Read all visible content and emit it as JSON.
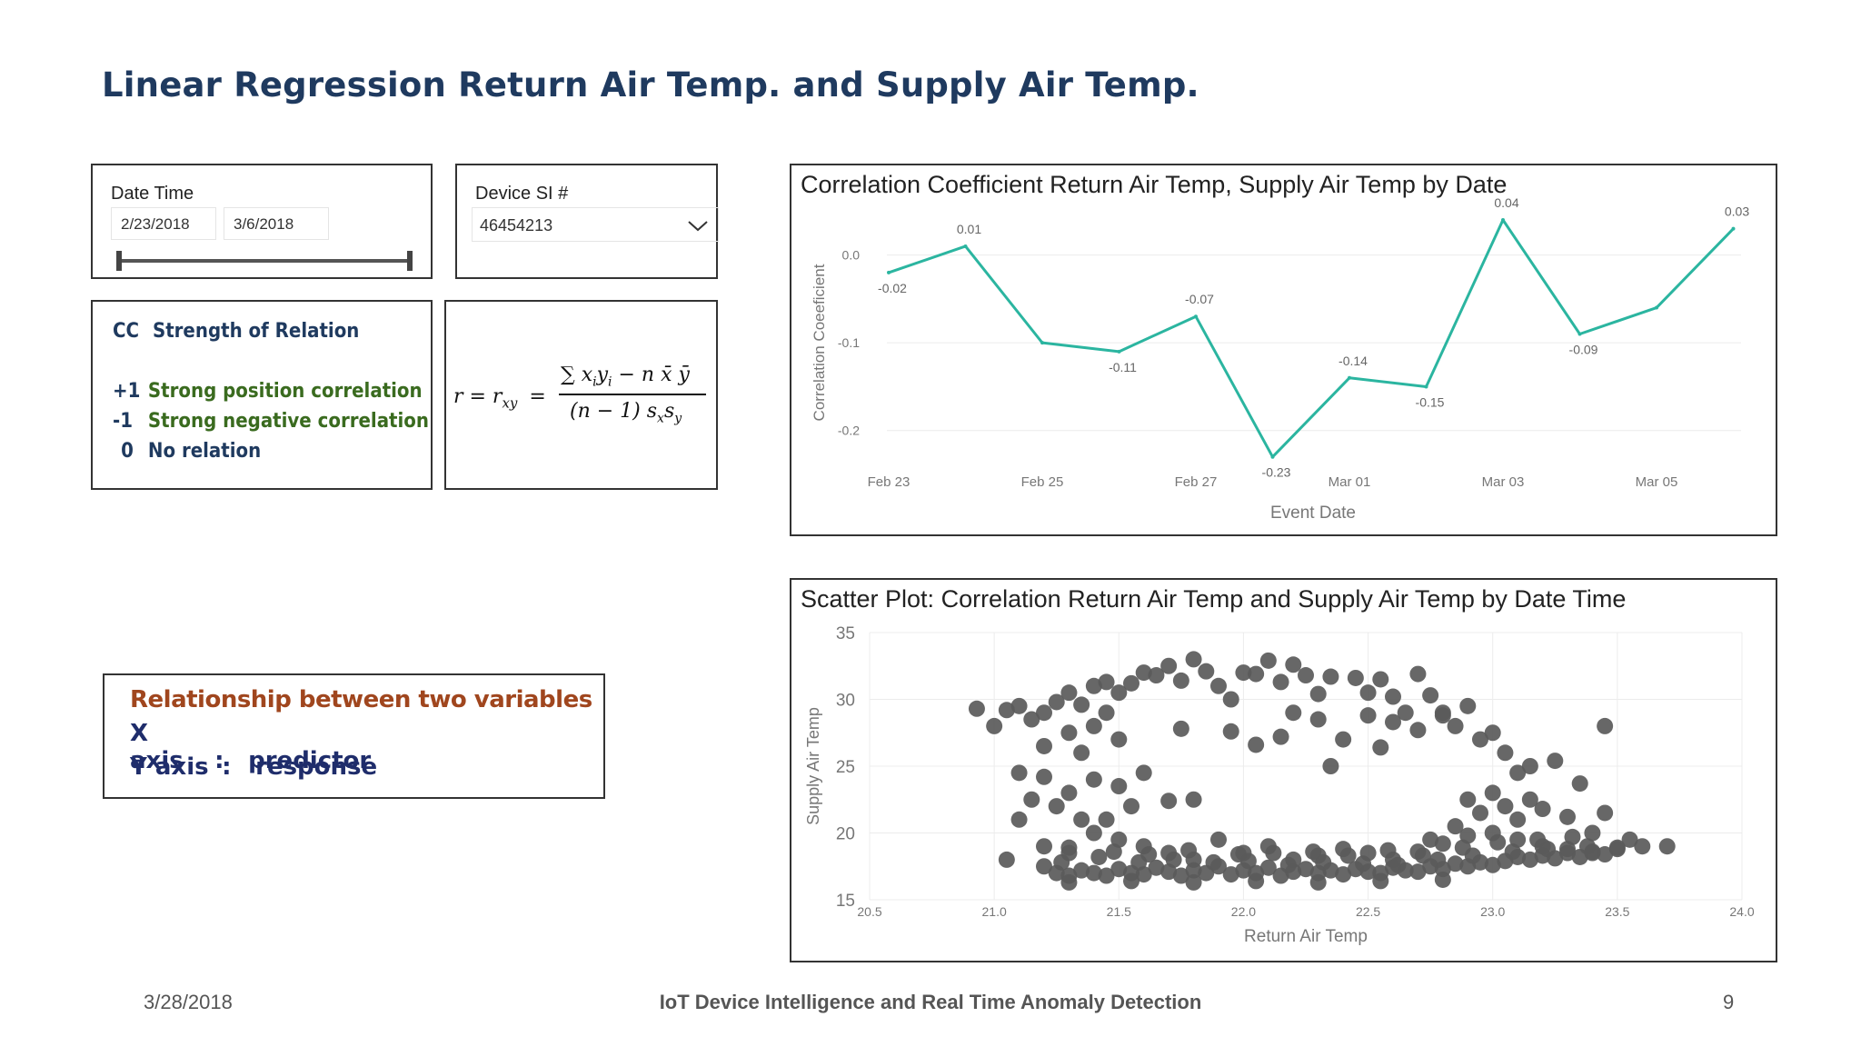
{
  "slide": {
    "title": "Linear Regression Return Air Temp. and Supply Air Temp.",
    "footer_date": "3/28/2018",
    "footer_center": "IoT Device Intelligence and Real Time Anomaly Detection",
    "page_number": "9"
  },
  "date_slicer": {
    "title": "Date Time",
    "start": "2/23/2018",
    "end": "3/6/2018"
  },
  "device_slicer": {
    "title": "Device SI #",
    "selected": "46454213"
  },
  "cc_legend": {
    "header_cc": "CC",
    "header_label": "Strength of Relation",
    "rows": [
      {
        "value": "+1",
        "label": "Strong position correlation",
        "color": "#3a6b1f"
      },
      {
        "value": "-1",
        "label": "Strong negative correlation",
        "color": "#3a6b1f"
      },
      {
        "value": "0",
        "label": "No relation",
        "color": "#1f3a5f"
      }
    ],
    "header_color": "#1f3a5f"
  },
  "relationship": {
    "heading": "Relationship between two variables",
    "heading_color": "#a0461e",
    "x_label": "X axis",
    "x_sep": ":",
    "x_value": "predictor",
    "y_label": "Y axis",
    "y_sep": ":",
    "y_value": "response",
    "text_color": "#1f2d6b"
  },
  "formula": {
    "lhs": "r = r",
    "lhs_sub": "xy",
    "equals": "=",
    "numerator": "∑ x",
    "numerator_rest": "y",
    "numerator_tail": " − n x̄ ȳ",
    "denominator": "(n − 1) s",
    "denominator_tail": "s"
  },
  "colors": {
    "line": "#2bb5a0",
    "scatter": "#5a5a5a",
    "grid": "#ececec",
    "axis_text": "#777777"
  },
  "chart_data": [
    {
      "type": "line",
      "title": "Correlation Coefficient Return Air Temp, Supply Air Temp by Date",
      "xlabel": "Event Date",
      "ylabel": "Correlation Coeeficient",
      "x_ticks": [
        "Feb 23",
        "Feb 25",
        "Feb 27",
        "Mar 01",
        "Mar 03",
        "Mar 05"
      ],
      "y_ticks": [
        "0.0",
        "-0.1",
        "-0.2"
      ],
      "y_tick_values": [
        0.0,
        -0.1,
        -0.2
      ],
      "ylim": [
        -0.25,
        0.04
      ],
      "x": [
        "Feb 23",
        "Feb 24",
        "Feb 25",
        "Feb 26",
        "Feb 27",
        "Feb 28",
        "Mar 01",
        "Mar 02",
        "Mar 03",
        "Mar 04",
        "Mar 05",
        "Mar 06"
      ],
      "values": [
        -0.02,
        0.01,
        -0.1,
        -0.11,
        -0.07,
        -0.23,
        -0.14,
        -0.15,
        0.04,
        -0.09,
        -0.06,
        0.03
      ],
      "data_labels": [
        "-0.02",
        "0.01",
        "",
        "-0.11",
        "-0.07",
        "-0.23",
        "-0.14",
        "-0.15",
        "0.04",
        "-0.09",
        "",
        "0.03"
      ]
    },
    {
      "type": "scatter",
      "title": "Scatter Plot: Correlation Return Air Temp and Supply Air Temp by Date Time",
      "xlabel": "Return Air Temp",
      "ylabel": "Supply Air Temp",
      "xlim": [
        20.5,
        24.0
      ],
      "ylim": [
        15,
        35
      ],
      "x_ticks": [
        "20.5",
        "21.0",
        "21.5",
        "22.0",
        "22.5",
        "23.0",
        "23.5",
        "24.0"
      ],
      "x_tick_values": [
        20.5,
        21.0,
        21.5,
        22.0,
        22.5,
        23.0,
        23.5,
        24.0
      ],
      "y_ticks": [
        "35",
        "30",
        "25",
        "20",
        "15"
      ],
      "y_tick_values": [
        35,
        30,
        25,
        20,
        15
      ],
      "points": [
        [
          20.93,
          29.3
        ],
        [
          21.0,
          28.0
        ],
        [
          21.05,
          29.2
        ],
        [
          21.1,
          29.5
        ],
        [
          21.15,
          28.5
        ],
        [
          21.2,
          29.0
        ],
        [
          21.25,
          29.8
        ],
        [
          21.3,
          30.5
        ],
        [
          21.35,
          29.6
        ],
        [
          21.4,
          31.0
        ],
        [
          21.45,
          31.3
        ],
        [
          21.5,
          30.5
        ],
        [
          21.55,
          31.2
        ],
        [
          21.6,
          32.0
        ],
        [
          21.65,
          31.8
        ],
        [
          21.7,
          32.5
        ],
        [
          21.75,
          31.4
        ],
        [
          21.8,
          33.0
        ],
        [
          21.85,
          32.1
        ],
        [
          21.9,
          31.0
        ],
        [
          21.95,
          30.0
        ],
        [
          22.0,
          32.0
        ],
        [
          22.05,
          31.9
        ],
        [
          22.1,
          32.9
        ],
        [
          22.15,
          31.3
        ],
        [
          22.2,
          32.6
        ],
        [
          22.25,
          31.8
        ],
        [
          22.3,
          30.4
        ],
        [
          22.35,
          31.7
        ],
        [
          22.45,
          31.6
        ],
        [
          22.5,
          30.5
        ],
        [
          22.55,
          31.5
        ],
        [
          22.6,
          30.2
        ],
        [
          22.65,
          29.0
        ],
        [
          22.7,
          31.9
        ],
        [
          22.75,
          30.3
        ],
        [
          22.8,
          29.0
        ],
        [
          22.85,
          28.0
        ],
        [
          22.9,
          29.5
        ],
        [
          22.95,
          27.0
        ],
        [
          23.0,
          27.5
        ],
        [
          23.05,
          26.0
        ],
        [
          23.1,
          24.5
        ],
        [
          23.15,
          25.0
        ],
        [
          23.25,
          25.4
        ],
        [
          23.35,
          23.7
        ],
        [
          23.45,
          28.0
        ],
        [
          21.4,
          28.0
        ],
        [
          21.3,
          27.5
        ],
        [
          21.2,
          26.5
        ],
        [
          21.35,
          26.0
        ],
        [
          21.5,
          27.0
        ],
        [
          21.45,
          29.0
        ],
        [
          22.2,
          29.0
        ],
        [
          22.3,
          28.5
        ],
        [
          22.4,
          27.0
        ],
        [
          22.5,
          28.8
        ],
        [
          22.6,
          28.3
        ],
        [
          22.7,
          27.7
        ],
        [
          22.8,
          28.8
        ],
        [
          21.95,
          27.6
        ],
        [
          22.35,
          25.0
        ],
        [
          21.75,
          27.8
        ],
        [
          22.55,
          26.4
        ],
        [
          22.05,
          26.6
        ],
        [
          22.15,
          27.2
        ],
        [
          21.1,
          24.5
        ],
        [
          21.2,
          24.2
        ],
        [
          21.3,
          23.0
        ],
        [
          21.4,
          24.0
        ],
        [
          21.5,
          23.5
        ],
        [
          21.55,
          22.0
        ],
        [
          21.6,
          24.5
        ],
        [
          21.15,
          22.5
        ],
        [
          21.25,
          22.0
        ],
        [
          21.35,
          21.0
        ],
        [
          21.1,
          21.0
        ],
        [
          21.45,
          21.0
        ],
        [
          21.7,
          22.4
        ],
        [
          21.8,
          22.5
        ],
        [
          22.9,
          22.5
        ],
        [
          23.0,
          23.0
        ],
        [
          23.05,
          22.0
        ],
        [
          22.95,
          21.5
        ],
        [
          23.1,
          21.0
        ],
        [
          23.15,
          22.5
        ],
        [
          23.2,
          21.8
        ],
        [
          23.3,
          21.2
        ],
        [
          23.4,
          20.0
        ],
        [
          23.45,
          21.5
        ],
        [
          23.55,
          19.5
        ],
        [
          23.6,
          19.0
        ],
        [
          23.7,
          19.0
        ],
        [
          22.85,
          20.5
        ],
        [
          22.75,
          19.5
        ],
        [
          21.05,
          18.0
        ],
        [
          21.2,
          19.0
        ],
        [
          21.3,
          18.5
        ],
        [
          21.4,
          20.0
        ],
        [
          21.5,
          19.5
        ],
        [
          21.6,
          19.0
        ],
        [
          21.7,
          18.5
        ],
        [
          21.8,
          18.0
        ],
        [
          21.9,
          19.5
        ],
        [
          22.0,
          18.5
        ],
        [
          22.1,
          19.0
        ],
        [
          22.2,
          18.0
        ],
        [
          22.3,
          18.3
        ],
        [
          22.4,
          18.8
        ],
        [
          22.5,
          18.5
        ],
        [
          22.6,
          18.0
        ],
        [
          22.7,
          18.6
        ],
        [
          22.8,
          19.2
        ],
        [
          22.9,
          19.8
        ],
        [
          23.0,
          20.0
        ],
        [
          23.1,
          19.5
        ],
        [
          23.2,
          19.0
        ],
        [
          23.3,
          18.8
        ],
        [
          23.4,
          18.5
        ],
        [
          23.5,
          18.8
        ],
        [
          21.2,
          17.5
        ],
        [
          21.25,
          17.0
        ],
        [
          21.3,
          16.8
        ],
        [
          21.35,
          17.2
        ],
        [
          21.4,
          17.0
        ],
        [
          21.45,
          16.8
        ],
        [
          21.5,
          17.3
        ],
        [
          21.55,
          17.0
        ],
        [
          21.6,
          16.9
        ],
        [
          21.65,
          17.4
        ],
        [
          21.7,
          17.1
        ],
        [
          21.75,
          16.8
        ],
        [
          21.8,
          17.2
        ],
        [
          21.85,
          17.0
        ],
        [
          21.9,
          17.5
        ],
        [
          21.95,
          16.9
        ],
        [
          22.0,
          17.2
        ],
        [
          22.05,
          17.0
        ],
        [
          22.1,
          17.4
        ],
        [
          22.15,
          16.8
        ],
        [
          22.2,
          17.1
        ],
        [
          22.25,
          17.3
        ],
        [
          22.3,
          17.0
        ],
        [
          22.35,
          17.2
        ],
        [
          22.4,
          16.9
        ],
        [
          22.45,
          17.3
        ],
        [
          22.5,
          17.1
        ],
        [
          22.55,
          17.0
        ],
        [
          22.6,
          17.4
        ],
        [
          22.65,
          17.2
        ],
        [
          22.7,
          17.1
        ],
        [
          22.75,
          17.5
        ],
        [
          22.8,
          17.3
        ],
        [
          22.85,
          17.7
        ],
        [
          22.9,
          17.5
        ],
        [
          22.95,
          17.8
        ],
        [
          23.0,
          17.6
        ],
        [
          23.05,
          17.9
        ],
        [
          23.1,
          18.2
        ],
        [
          23.15,
          18.0
        ],
        [
          23.2,
          18.3
        ],
        [
          23.25,
          18.1
        ],
        [
          23.3,
          18.5
        ],
        [
          23.35,
          18.2
        ],
        [
          23.4,
          18.6
        ],
        [
          23.45,
          18.4
        ],
        [
          23.5,
          18.9
        ],
        [
          21.27,
          17.8
        ],
        [
          21.42,
          18.2
        ],
        [
          21.58,
          17.8
        ],
        [
          21.72,
          18.0
        ],
        [
          21.88,
          17.8
        ],
        [
          22.02,
          17.9
        ],
        [
          22.18,
          17.6
        ],
        [
          22.32,
          17.8
        ],
        [
          22.48,
          17.7
        ],
        [
          22.62,
          17.6
        ],
        [
          22.78,
          18.0
        ],
        [
          22.92,
          18.3
        ],
        [
          23.08,
          18.6
        ],
        [
          23.22,
          18.8
        ],
        [
          23.38,
          19.0
        ],
        [
          21.3,
          18.9
        ],
        [
          21.48,
          18.6
        ],
        [
          21.62,
          18.4
        ],
        [
          21.78,
          18.7
        ],
        [
          21.98,
          18.4
        ],
        [
          22.12,
          18.5
        ],
        [
          22.28,
          18.6
        ],
        [
          22.42,
          18.3
        ],
        [
          22.58,
          18.7
        ],
        [
          22.72,
          18.3
        ],
        [
          22.88,
          18.9
        ],
        [
          23.02,
          19.3
        ],
        [
          23.18,
          19.5
        ],
        [
          23.32,
          19.7
        ],
        [
          21.3,
          16.3
        ],
        [
          21.55,
          16.4
        ],
        [
          21.8,
          16.3
        ],
        [
          22.05,
          16.4
        ],
        [
          22.3,
          16.3
        ],
        [
          22.55,
          16.4
        ],
        [
          22.8,
          16.5
        ]
      ]
    }
  ]
}
